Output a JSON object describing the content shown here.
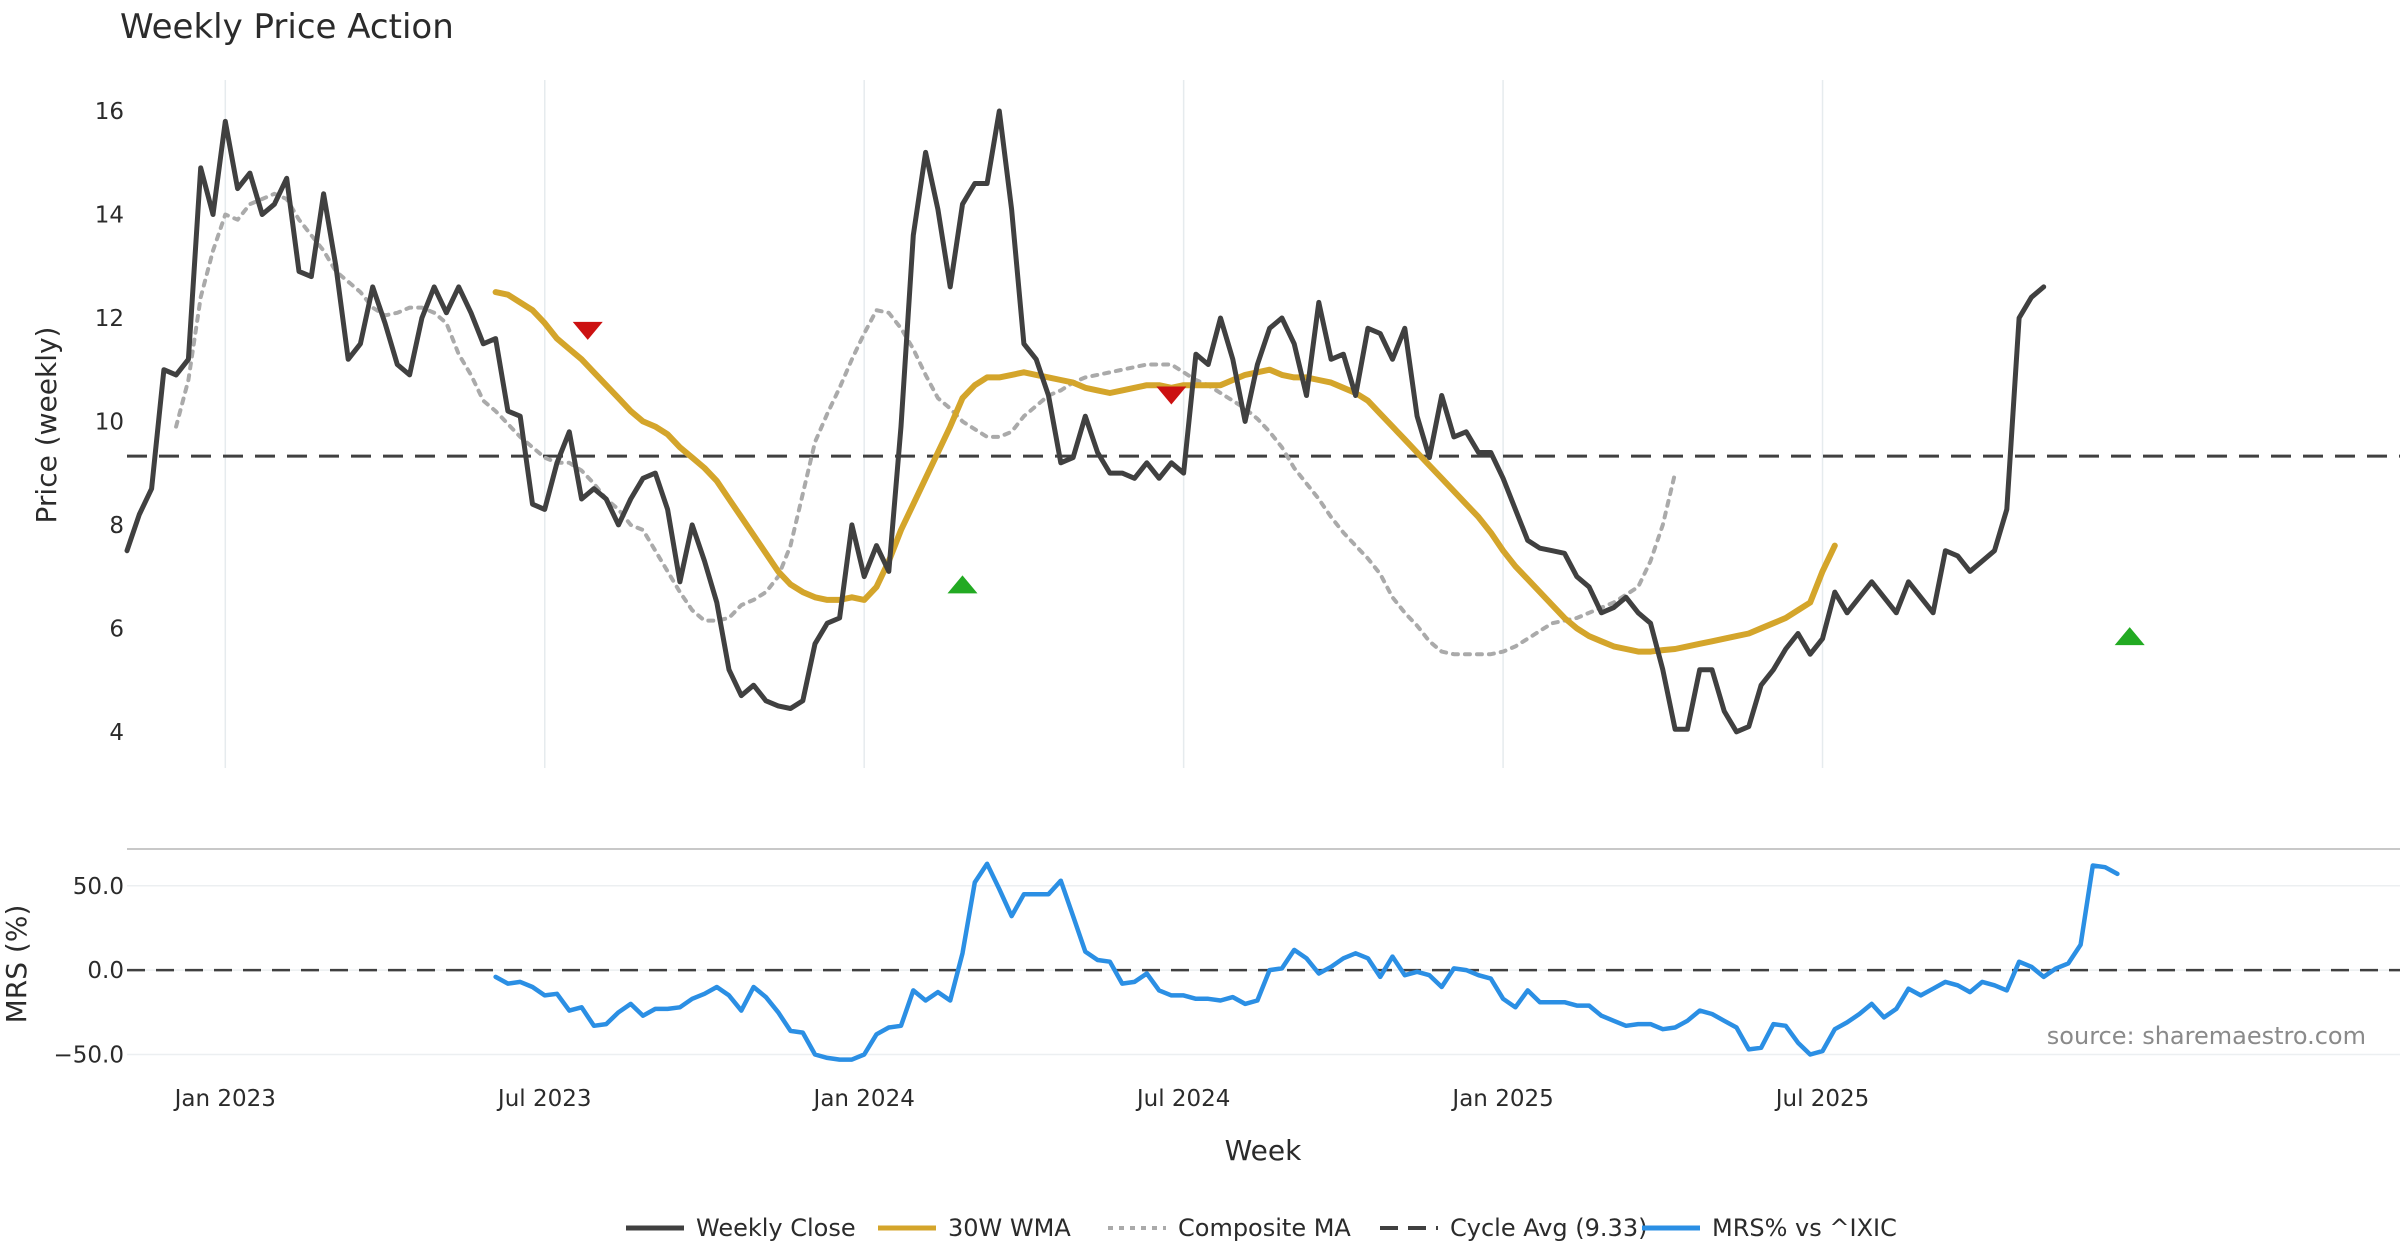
{
  "chart_data": {
    "type": "line",
    "title": "Weekly Price Action",
    "xlabel": "Week",
    "x_ticks": [
      "Jan 2023",
      "Jul 2023",
      "Jan 2024",
      "Jul 2024",
      "Jan 2025",
      "Jul 2025"
    ],
    "x_range": [
      -8,
      177
    ],
    "price_panel": {
      "ylabel": "Price (weekly)",
      "ylim": [
        3.3,
        16.6
      ],
      "yticks": [
        "4",
        "6",
        "8",
        "10",
        "12",
        "14",
        "16"
      ],
      "ytick_values": [
        4,
        6,
        8,
        10,
        12,
        14,
        16
      ],
      "series": [
        {
          "name": "Weekly Close",
          "color": "#404040",
          "start": -8,
          "values": [
            7.5,
            8.2,
            8.7,
            11.0,
            10.9,
            11.2,
            14.9,
            14.0,
            15.8,
            14.5,
            14.8,
            14.0,
            14.2,
            14.7,
            12.9,
            12.8,
            14.4,
            13.0,
            11.2,
            11.5,
            12.6,
            11.9,
            11.1,
            10.9,
            12.0,
            12.6,
            12.1,
            12.6,
            12.1,
            11.5,
            11.6,
            10.2,
            10.1,
            8.4,
            8.3,
            9.2,
            9.8,
            8.5,
            8.7,
            8.5,
            8.0,
            8.5,
            8.9,
            9.0,
            8.3,
            6.9,
            8.0,
            7.3,
            6.5,
            5.2,
            4.7,
            4.9,
            4.6,
            4.5,
            4.45,
            4.6,
            5.7,
            6.1,
            6.2,
            8.0,
            7.0,
            7.6,
            7.1,
            9.9,
            13.6,
            15.2,
            14.1,
            12.6,
            14.2,
            14.6,
            14.6,
            16.0,
            14.1,
            11.5,
            11.2,
            10.5,
            9.2,
            9.3,
            10.1,
            9.4,
            9.0,
            9.0,
            8.9,
            9.2,
            8.9,
            9.2,
            9.0,
            11.3,
            11.1,
            12.0,
            11.2,
            10.0,
            11.1,
            11.8,
            12.0,
            11.5,
            10.5,
            12.3,
            11.2,
            11.3,
            10.5,
            11.8,
            11.7,
            11.2,
            11.8,
            10.1,
            9.3,
            10.5,
            9.7,
            9.8,
            9.4,
            9.4,
            8.9,
            8.3,
            7.7,
            7.55,
            7.5,
            7.45,
            7.0,
            6.8,
            6.3,
            6.4,
            6.6,
            6.3,
            6.1,
            5.2,
            4.05,
            4.05,
            5.2,
            5.2,
            4.4,
            4.0,
            4.1,
            4.9,
            5.2,
            5.6,
            5.9,
            5.5,
            5.8,
            6.7,
            6.3,
            6.6,
            6.9,
            6.6,
            6.3,
            6.9,
            6.6,
            6.3,
            7.5,
            7.4,
            7.1,
            7.3,
            7.5,
            8.3,
            12.0,
            12.4,
            12.6
          ]
        },
        {
          "name": "30W WMA",
          "color": "#d4a52b",
          "start": 22,
          "values": [
            12.5,
            12.45,
            12.3,
            12.15,
            11.9,
            11.6,
            11.4,
            11.2,
            10.95,
            10.7,
            10.45,
            10.2,
            10.0,
            9.9,
            9.75,
            9.5,
            9.3,
            9.1,
            8.85,
            8.5,
            8.15,
            7.8,
            7.45,
            7.1,
            6.85,
            6.7,
            6.6,
            6.55,
            6.55,
            6.6,
            6.55,
            6.8,
            7.3,
            7.9,
            8.4,
            8.9,
            9.4,
            9.9,
            10.45,
            10.7,
            10.85,
            10.85,
            10.9,
            10.95,
            10.9,
            10.85,
            10.8,
            10.75,
            10.65,
            10.6,
            10.55,
            10.6,
            10.65,
            10.7,
            10.7,
            10.65,
            10.7,
            10.7,
            10.7,
            10.7,
            10.8,
            10.9,
            10.95,
            11.0,
            10.9,
            10.85,
            10.85,
            10.8,
            10.75,
            10.65,
            10.55,
            10.4,
            10.15,
            9.9,
            9.65,
            9.4,
            9.15,
            8.9,
            8.65,
            8.4,
            8.15,
            7.85,
            7.5,
            7.2,
            6.95,
            6.7,
            6.45,
            6.2,
            6.0,
            5.85,
            5.75,
            5.65,
            5.6,
            5.55,
            5.55,
            5.58,
            5.6,
            5.65,
            5.7,
            5.75,
            5.8,
            5.85,
            5.9,
            6.0,
            6.1,
            6.2,
            6.35,
            6.5,
            7.1,
            7.6
          ]
        },
        {
          "name": "Composite MA",
          "color": "#aaaaaa",
          "start": -4,
          "values": [
            9.9,
            10.8,
            12.4,
            13.3,
            14.0,
            13.9,
            14.2,
            14.3,
            14.4,
            14.3,
            13.9,
            13.6,
            13.3,
            12.9,
            12.7,
            12.5,
            12.2,
            12.05,
            12.1,
            12.2,
            12.2,
            12.1,
            11.9,
            11.3,
            10.9,
            10.4,
            10.2,
            9.95,
            9.7,
            9.5,
            9.3,
            9.2,
            9.2,
            9.05,
            8.8,
            8.5,
            8.3,
            8.0,
            7.9,
            7.5,
            7.1,
            6.7,
            6.35,
            6.15,
            6.15,
            6.2,
            6.45,
            6.55,
            6.7,
            7.0,
            7.6,
            8.6,
            9.6,
            10.15,
            10.65,
            11.2,
            11.7,
            12.15,
            12.1,
            11.8,
            11.4,
            10.9,
            10.45,
            10.25,
            10.0,
            9.85,
            9.7,
            9.7,
            9.8,
            10.1,
            10.3,
            10.5,
            10.6,
            10.75,
            10.85,
            10.9,
            10.95,
            11.0,
            11.05,
            11.1,
            11.1,
            11.1,
            10.95,
            10.8,
            10.7,
            10.55,
            10.4,
            10.25,
            10.05,
            9.8,
            9.5,
            9.1,
            8.8,
            8.5,
            8.15,
            7.85,
            7.6,
            7.35,
            7.05,
            6.6,
            6.3,
            6.05,
            5.75,
            5.55,
            5.5,
            5.5,
            5.5,
            5.5,
            5.55,
            5.65,
            5.8,
            5.95,
            6.1,
            6.15,
            6.2,
            6.3,
            6.4,
            6.5,
            6.65,
            6.8,
            7.3,
            8.0,
            9.0
          ]
        }
      ],
      "reference_line": {
        "name": "Cycle Avg (9.33)",
        "value": 9.33,
        "color": "#404040"
      },
      "signals": [
        {
          "type": "sell",
          "x": 29.5,
          "y": 11.75,
          "color": "#cc1111"
        },
        {
          "type": "buy",
          "x": 60,
          "y": 6.85,
          "color": "#22aa22"
        },
        {
          "type": "sell",
          "x": 77,
          "y": 10.5,
          "color": "#cc1111"
        },
        {
          "type": "buy",
          "x": 155,
          "y": 5.85,
          "color": "#22aa22"
        }
      ]
    },
    "mrs_panel": {
      "ylabel": "MRS (%)",
      "ylim": [
        -58,
        70
      ],
      "yticks": [
        "50.0",
        "0.0",
        "−50.0"
      ],
      "ytick_values": [
        50,
        0,
        -50
      ],
      "series": [
        {
          "name": "MRS% vs ^IXIC",
          "color": "#2b8fe4",
          "start": 22,
          "values": [
            -4,
            -8,
            -7,
            -10,
            -15,
            -14,
            -24,
            -22,
            -33,
            -32,
            -25,
            -20,
            -27,
            -23,
            -23,
            -22,
            -17,
            -14,
            -10,
            -15,
            -24,
            -10,
            -16,
            -25,
            -36,
            -37,
            -50,
            -52,
            -53,
            -53,
            -50,
            -38,
            -34,
            -33,
            -12,
            -18,
            -13,
            -18,
            10,
            52,
            63,
            48,
            32,
            45,
            45,
            45,
            53,
            32,
            11,
            6,
            5,
            -8,
            -7,
            -2,
            -12,
            -15,
            -15,
            -17,
            -17,
            -18,
            -16,
            -20,
            -18,
            0,
            1,
            12,
            7,
            -2,
            2,
            7,
            10,
            7,
            -4,
            8,
            -3,
            -1,
            -3,
            -10,
            1,
            0,
            -3,
            -5,
            -17,
            -22,
            -12,
            -19,
            -19,
            -19,
            -21,
            -21,
            -27,
            -30,
            -33,
            -32,
            -32,
            -35,
            -34,
            -30,
            -24,
            -26,
            -30,
            -34,
            -47,
            -46,
            -32,
            -33,
            -43,
            -50,
            -48,
            -35,
            -31,
            -26,
            -20,
            -28,
            -23,
            -11,
            -15,
            -11,
            -7,
            -9,
            -13,
            -7,
            -9,
            -12,
            5,
            2,
            -4,
            1,
            4,
            15,
            62,
            61,
            57
          ]
        }
      ],
      "reference_line": {
        "value": 0,
        "color": "#404040"
      },
      "source_text": "source: sharemaestro.com"
    },
    "legend": [
      {
        "label": "Weekly Close",
        "style": "solid",
        "color": "#404040"
      },
      {
        "label": "30W WMA",
        "style": "solid",
        "color": "#d4a52b"
      },
      {
        "label": "Composite MA",
        "style": "dotted",
        "color": "#aaaaaa"
      },
      {
        "label": "Cycle Avg (9.33)",
        "style": "dashed",
        "color": "#404040"
      },
      {
        "label": "MRS% vs ^IXIC",
        "style": "solid",
        "color": "#2b8fe4"
      }
    ]
  }
}
